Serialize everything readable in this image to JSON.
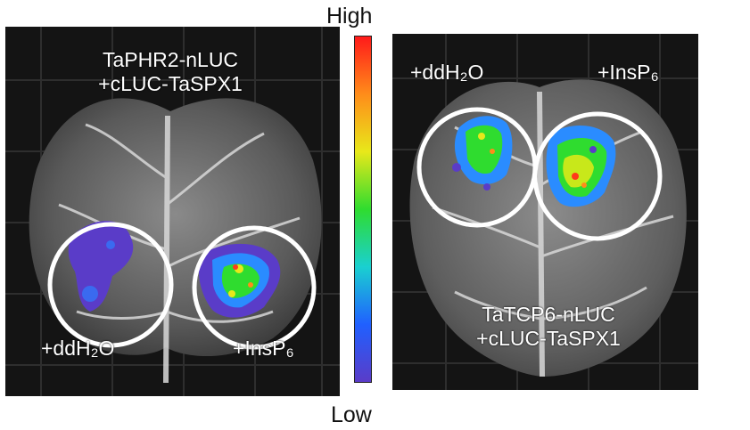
{
  "colorbar": {
    "high_label": "High",
    "low_label": "Low",
    "colors": [
      "#ff1a1a",
      "#ff8c1a",
      "#e8e81a",
      "#2fdc2f",
      "#1ad0d0",
      "#2060ff",
      "#5a3cc8"
    ]
  },
  "left_panel": {
    "construct_line1": "TaPHR2-nLUC",
    "construct_line2": "+cLUC-TaSPX1",
    "treatment_left": "+ddH₂O",
    "treatment_right": "+InsP₆"
  },
  "right_panel": {
    "construct_line1": "TaTCP6-nLUC",
    "construct_line2": "+cLUC-TaSPX1",
    "treatment_left": "+ddH₂O",
    "treatment_right": "+InsP₆"
  }
}
